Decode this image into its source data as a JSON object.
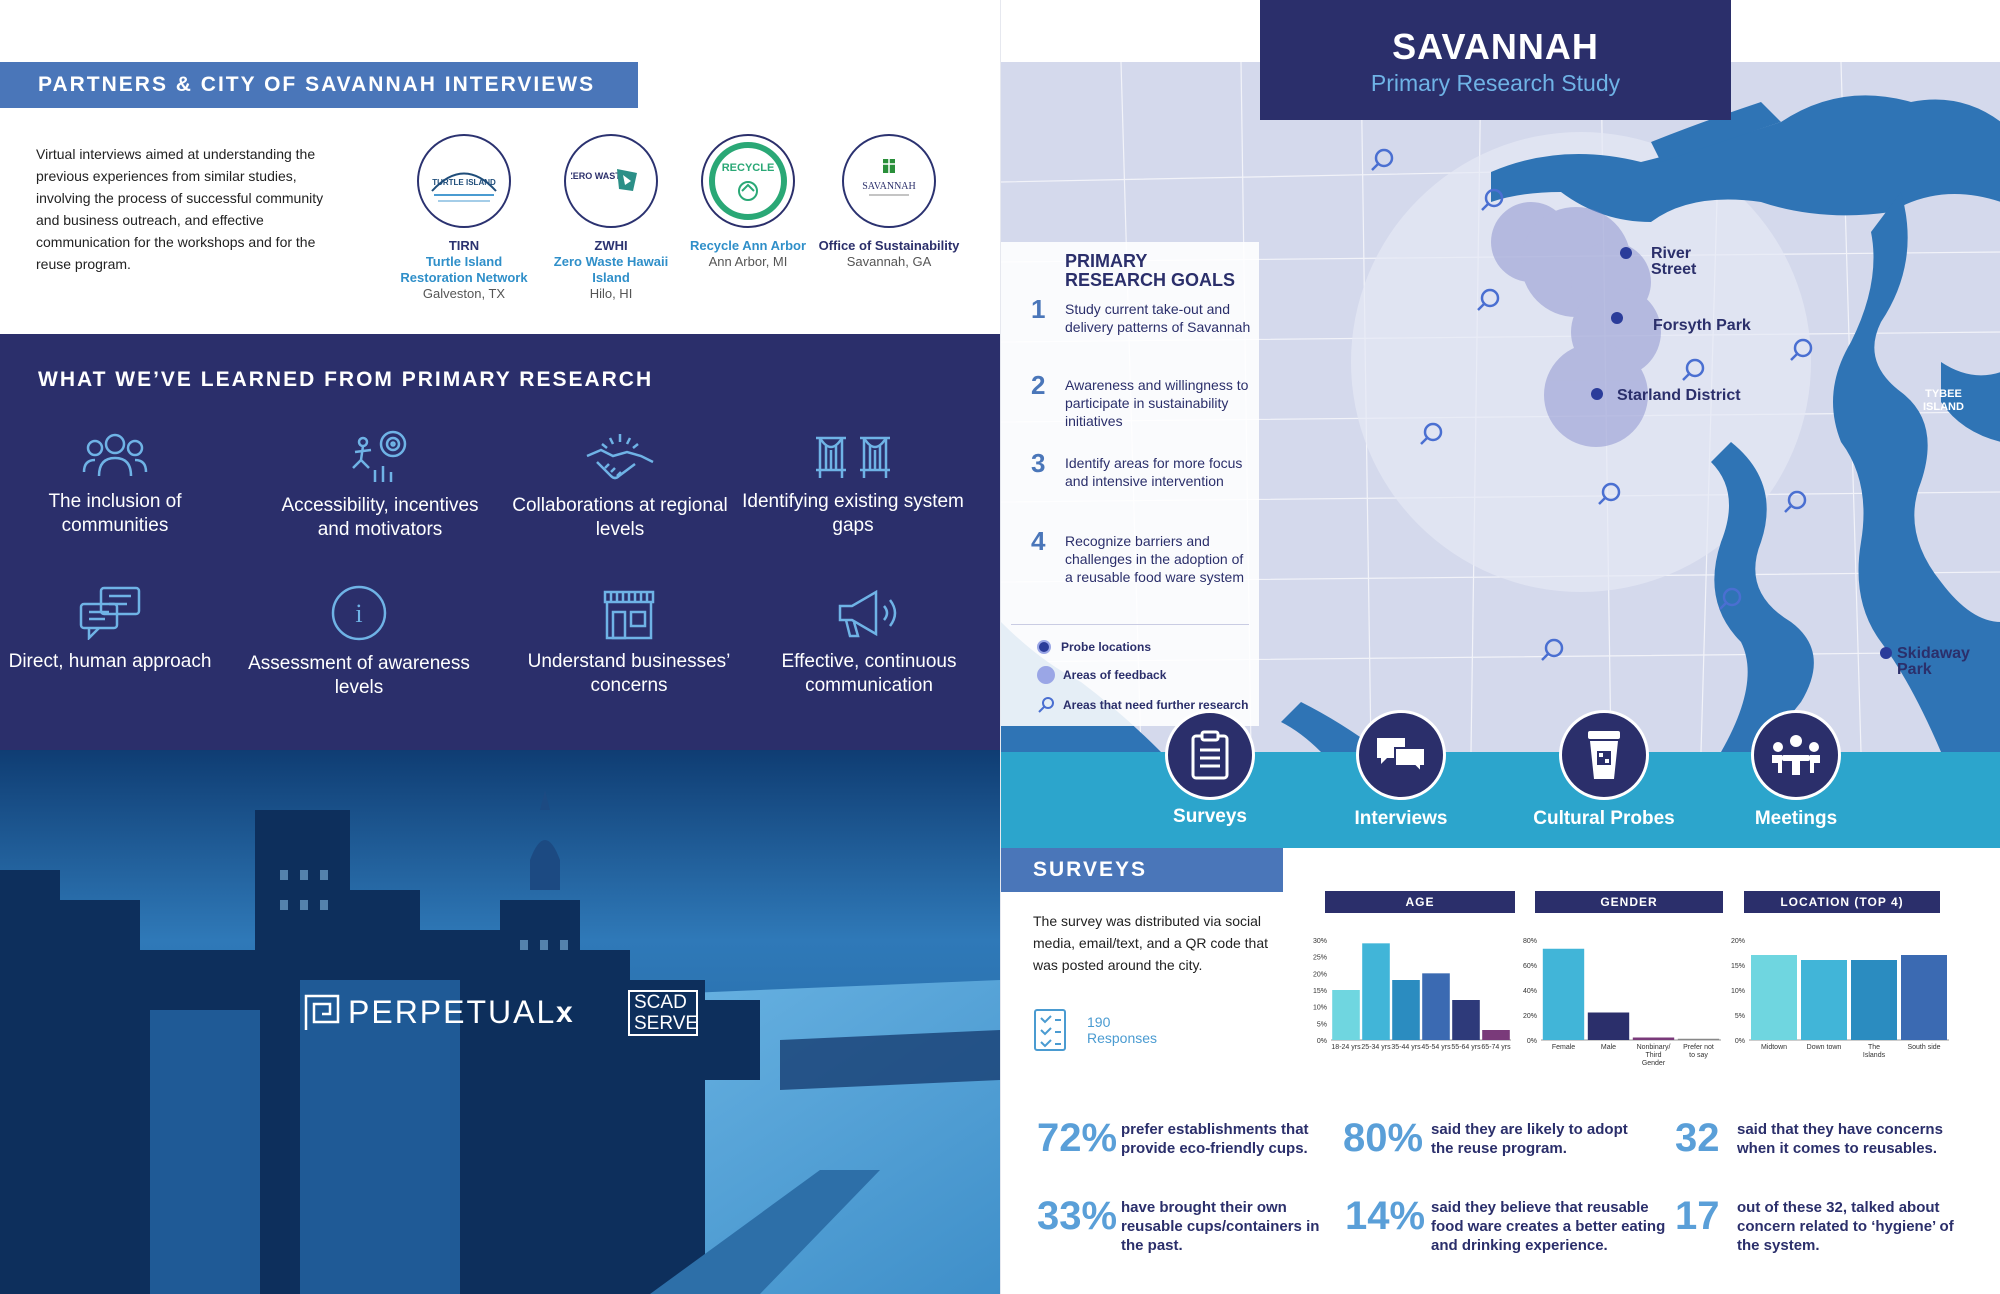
{
  "partners": {
    "heading": "PARTNERS & CITY OF SAVANNAH INTERVIEWS",
    "description": "Virtual interviews aimed at understanding the previous experiences from similar studies, involving the process of successful community and business outreach, and effective communication for the workshops and for the reuse program.",
    "items": [
      {
        "abbr": "TIRN",
        "name": "Turtle Island Restoration Network",
        "location": "Galveston, TX",
        "logo_text": "TURTLE ISLAND"
      },
      {
        "abbr": "ZWHI",
        "name": "Zero Waste Hawaii Island",
        "location": "Hilo, HI",
        "logo_text": "ZERO WASTE"
      },
      {
        "abbr": "",
        "name": "Recycle Ann Arbor",
        "location": "Ann Arbor, MI",
        "logo_text": "RECYCLE"
      },
      {
        "abbr": "",
        "name": "Office of Sustainability",
        "location": "Savannah, GA",
        "logo_text": "SAVANNAH"
      }
    ]
  },
  "learned": {
    "heading": "WHAT WE’VE LEARNED FROM PRIMARY RESEARCH",
    "items": [
      {
        "label": "The inclusion of communities",
        "icon": "people-icon"
      },
      {
        "label": "Accessibility, incentives and motivators",
        "icon": "target-runner-icon"
      },
      {
        "label": "Collaborations at regional levels",
        "icon": "handshake-icon"
      },
      {
        "label": "Identifying existing system gaps",
        "icon": "bridge-icon"
      },
      {
        "label": "Direct, human approach",
        "icon": "chat-icon"
      },
      {
        "label": "Assessment of awareness levels",
        "icon": "info-icon"
      },
      {
        "label": "Understand businesses’ concerns",
        "icon": "storefront-icon"
      },
      {
        "label": "Effective, continuous communication",
        "icon": "megaphone-icon"
      }
    ]
  },
  "brand": {
    "perpetual": "PERPETUAL",
    "x": "x",
    "scad_line1": "SCAD",
    "scad_line2": "SERVE"
  },
  "study": {
    "city": "SAVANNAH",
    "subtitle": "Primary Research Study"
  },
  "goals": {
    "heading_line1": "PRIMARY",
    "heading_line2": "RESEARCH GOALS",
    "items": [
      {
        "num": "1",
        "text": "Study current take-out and delivery patterns of Savannah"
      },
      {
        "num": "2",
        "text": "Awareness and willingness to participate in sustainability initiatives"
      },
      {
        "num": "3",
        "text": "Identify areas for more focus and intensive intervention"
      },
      {
        "num": "4",
        "text": "Recognize barriers and challenges in the adoption of a reusable food ware system"
      }
    ]
  },
  "legend": {
    "probe": "Probe locations",
    "feedback": "Areas of feedback",
    "further": "Areas that need further research"
  },
  "map_labels": {
    "river_street_1": "River",
    "river_street_2": "Street",
    "forsyth": "Forsyth Park",
    "starland": "Starland District",
    "tybee_1": "TYBEE",
    "tybee_2": "ISLAND",
    "skidaway_1": "Skidaway",
    "skidaway_2": "Park"
  },
  "methods": [
    {
      "label": "Surveys",
      "icon": "clipboard-icon"
    },
    {
      "label": "Interviews",
      "icon": "chat-bubbles-icon"
    },
    {
      "label": "Cultural Probes",
      "icon": "cup-qr-icon"
    },
    {
      "label": "Meetings",
      "icon": "meeting-icon"
    }
  ],
  "surveys": {
    "heading": "SURVEYS",
    "description": "The survey was distributed via social media, email/text, and a QR code that was posted around the city.",
    "responses_count": "190",
    "responses_label": "Responses"
  },
  "chart_data": [
    {
      "type": "bar",
      "title": "AGE",
      "categories": [
        "18-24 yrs",
        "25-34 yrs",
        "35-44 yrs",
        "45-54 yrs",
        "55-64 yrs",
        "65-74 yrs"
      ],
      "values": [
        15,
        29,
        18,
        20,
        12,
        3
      ],
      "ylim": [
        0,
        30
      ],
      "yticks": [
        "0%",
        "5%",
        "10%",
        "15%",
        "20%",
        "25%",
        "30%"
      ],
      "colors": [
        "#6fd6e0",
        "#41b5d8",
        "#2b8cc0",
        "#3b6ab2",
        "#2e3a7a",
        "#7a3a7a"
      ]
    },
    {
      "type": "bar",
      "title": "GENDER",
      "categories": [
        "Female",
        "Male",
        "Nonbinary/ Third Gender",
        "Prefer not to say"
      ],
      "values": [
        73,
        22,
        2,
        1
      ],
      "ylim": [
        0,
        80
      ],
      "yticks": [
        "0%",
        "20%",
        "40%",
        "60%",
        "80%"
      ],
      "colors": [
        "#41b5d8",
        "#2b2f6b",
        "#7a3a7a",
        "#888888"
      ]
    },
    {
      "type": "bar",
      "title": "LOCATION (TOP 4)",
      "categories": [
        "Midtown",
        "Down town",
        "The Islands",
        "South side"
      ],
      "values": [
        17,
        16,
        16,
        17
      ],
      "ylim": [
        0,
        20
      ],
      "yticks": [
        "0%",
        "5%",
        "10%",
        "15%",
        "20%"
      ],
      "colors": [
        "#6fd6e0",
        "#41b5d8",
        "#2b8cc0",
        "#3b6ab2"
      ]
    }
  ],
  "stats": [
    {
      "value": "72%",
      "text": "prefer establishments that provide eco-friendly cups."
    },
    {
      "value": "80%",
      "text": "said they are likely to adopt the reuse program."
    },
    {
      "value": "32",
      "text": "said that they have concerns when it comes to reusables."
    },
    {
      "value": "33%",
      "text": "have brought their own reusable cups/containers in the past."
    },
    {
      "value": "14%",
      "text": "said they believe that reusable food ware creates a better eating and drinking experience."
    },
    {
      "value": "17",
      "text": "out of these 32, talked about concern related to ‘hygiene’ of the system."
    }
  ]
}
